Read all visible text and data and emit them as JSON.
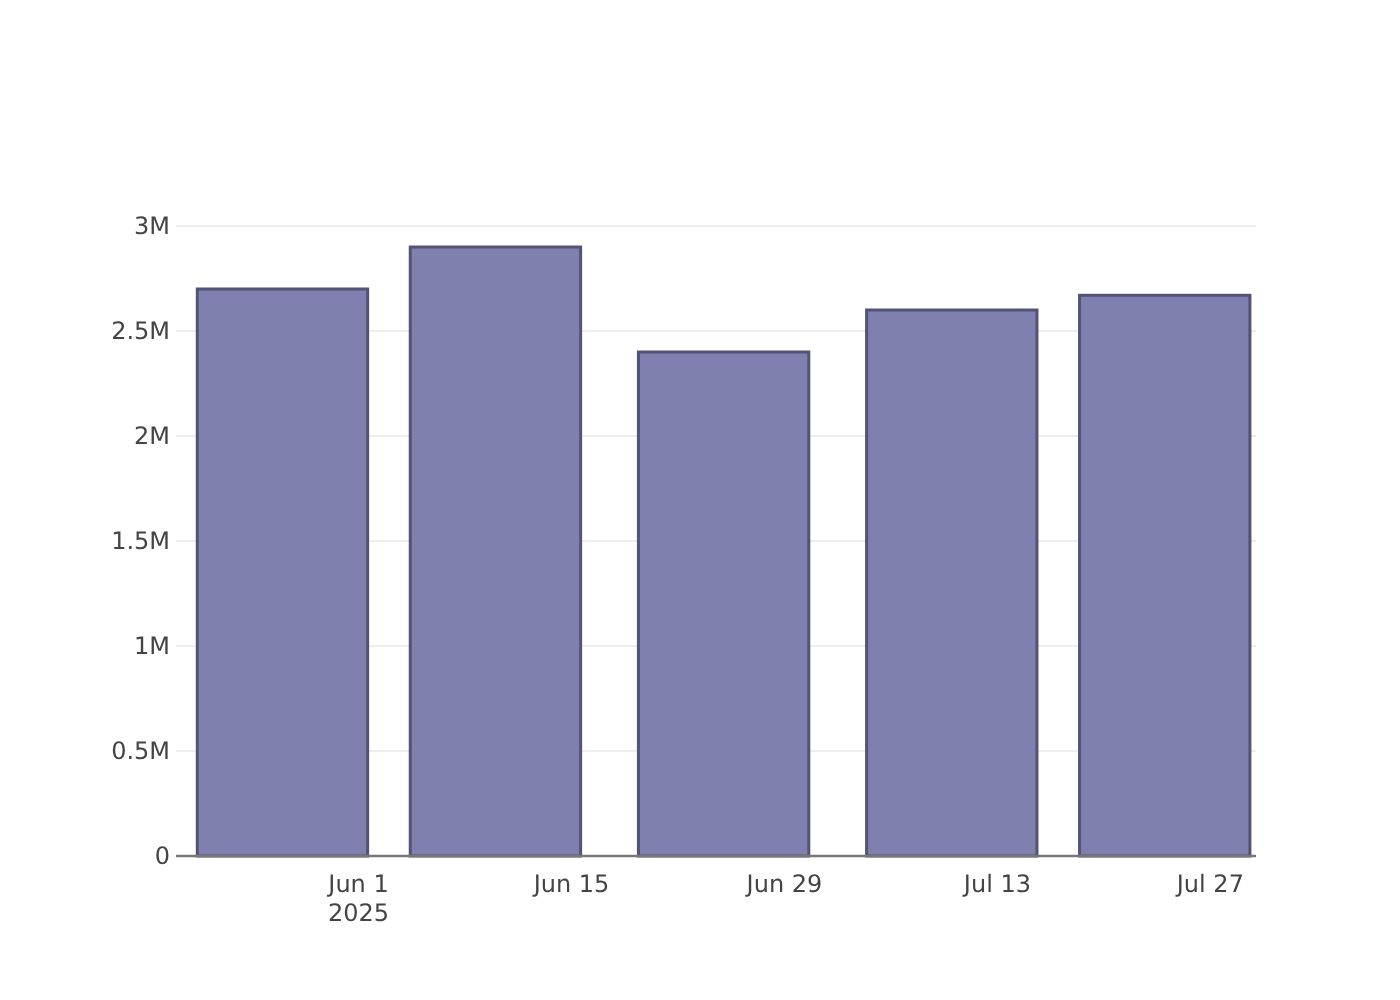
{
  "chart_data": {
    "type": "bar",
    "x": [
      "2025-05-27",
      "2025-06-10",
      "2025-06-25",
      "2025-07-10",
      "2025-07-24"
    ],
    "values": [
      2700000,
      2900000,
      2400000,
      2600000,
      2670000
    ],
    "color": "#7f7fb0",
    "xlim": [
      "2025-05-20",
      "2025-07-30"
    ],
    "xticks": [
      {
        "value": "2025-06-01",
        "label": "Jun 1\n2025"
      },
      {
        "value": "2025-06-15",
        "label": "Jun 15"
      },
      {
        "value": "2025-06-29",
        "label": "Jun 29"
      },
      {
        "value": "2025-07-13",
        "label": "Jul 13"
      },
      {
        "value": "2025-07-27",
        "label": "Jul 27"
      }
    ],
    "ylim": [
      0,
      3000000
    ],
    "yticks": [
      {
        "value": 0,
        "label": "0"
      },
      {
        "value": 500000,
        "label": "0.5M"
      },
      {
        "value": 1000000,
        "label": "1M"
      },
      {
        "value": 1500000,
        "label": "1.5M"
      },
      {
        "value": 2000000,
        "label": "2M"
      },
      {
        "value": 2500000,
        "label": "2.5M"
      },
      {
        "value": 3000000,
        "label": "3M"
      }
    ],
    "grid": "y"
  }
}
